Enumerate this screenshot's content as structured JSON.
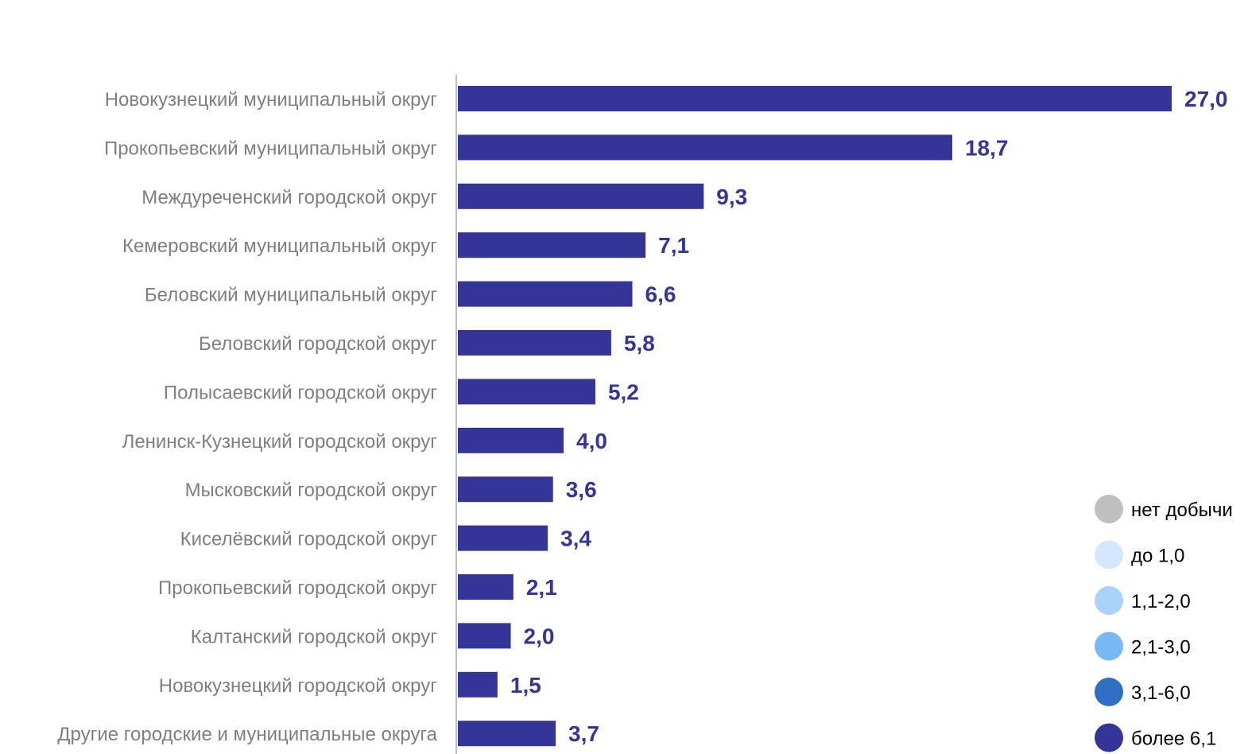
{
  "chart_data": {
    "type": "bar",
    "orientation": "horizontal",
    "categories": [
      "Новокузнецкий муниципальный округ",
      "Прокопьевский муниципальный округ",
      "Междуреченский городской округ",
      "Кемеровский муниципальный округ",
      "Беловский муниципальный округ",
      "Беловский городской округ",
      "Полысаевский городской округ",
      "Ленинск-Кузнецкий городской округ",
      "Мысковский городской округ",
      "Киселёвский городской округ",
      "Прокопьевский городской округ",
      "Калтанский городской округ",
      "Новокузнецкий городской округ",
      "Другие городские и муниципальные округа"
    ],
    "values": [
      27.0,
      18.7,
      9.3,
      7.1,
      6.6,
      5.8,
      5.2,
      4.0,
      3.6,
      3.4,
      2.1,
      2.0,
      1.5,
      3.7
    ],
    "value_labels": [
      "27,0",
      "18,7",
      "9,3",
      "7,1",
      "6,6",
      "5,8",
      "5,2",
      "4,0",
      "3,6",
      "3,4",
      "2,1",
      "2,0",
      "1,5",
      "3,7"
    ],
    "xlim": [
      0,
      27
    ],
    "grid": false,
    "bar_color": "#353597",
    "legend_placement": "bottom-right",
    "legend": [
      {
        "label": "нет добычи",
        "color": "#bfbfbf"
      },
      {
        "label": "до 1,0",
        "color": "#d3e8fc"
      },
      {
        "label": "1,1-2,0",
        "color": "#a9d3fa"
      },
      {
        "label": "2,1-3,0",
        "color": "#78b8f5"
      },
      {
        "label": "3,1-6,0",
        "color": "#2f70c4"
      },
      {
        "label": "более 6,1",
        "color": "#353597"
      }
    ]
  }
}
